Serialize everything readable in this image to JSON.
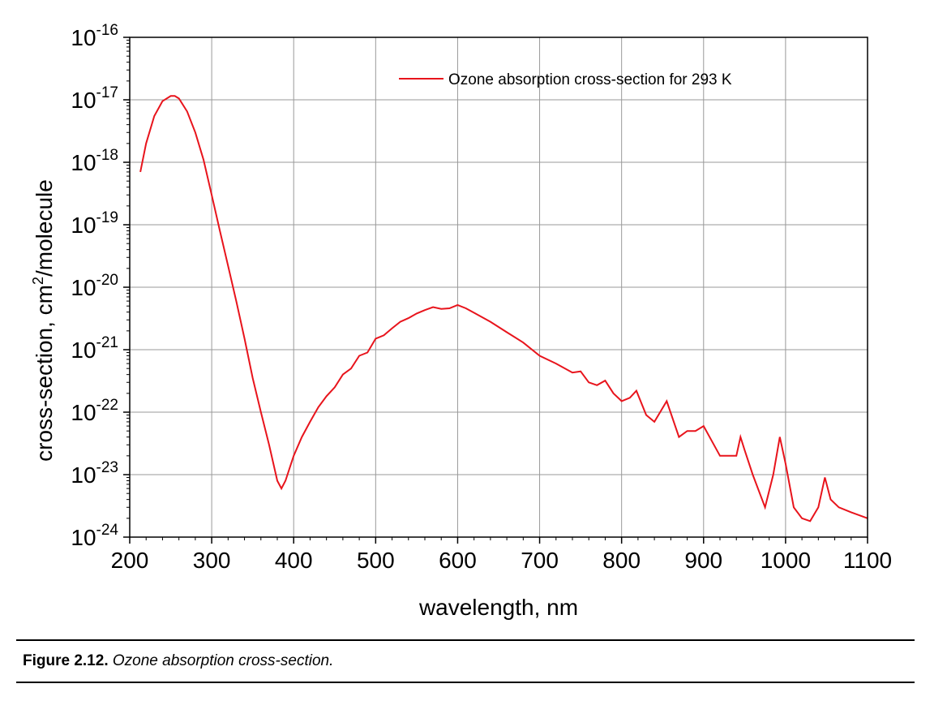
{
  "chart_data": {
    "type": "line",
    "xlabel": "wavelength, nm",
    "ylabel": "cross-section, cm²/molecule",
    "ylabel_parts": {
      "pre": "cross-section, cm",
      "sup": "2",
      "post": "/molecule"
    },
    "xlim": [
      200,
      1100
    ],
    "ylim": [
      1e-24,
      1e-16
    ],
    "yscale": "log",
    "grid": true,
    "legend_position": "top-right",
    "x_ticks": [
      "200",
      "300",
      "400",
      "500",
      "600",
      "700",
      "800",
      "900",
      "1000",
      "1100"
    ],
    "y_ticks": [
      {
        "base": "10",
        "exp": "-16"
      },
      {
        "base": "10",
        "exp": "-17"
      },
      {
        "base": "10",
        "exp": "-18"
      },
      {
        "base": "10",
        "exp": "-19"
      },
      {
        "base": "10",
        "exp": "-20"
      },
      {
        "base": "10",
        "exp": "-21"
      },
      {
        "base": "10",
        "exp": "-22"
      },
      {
        "base": "10",
        "exp": "-23"
      },
      {
        "base": "10",
        "exp": "-24"
      }
    ],
    "series": [
      {
        "name": "Ozone absorption cross-section for 293 K",
        "color": "#e8141c",
        "x": [
          213,
          220,
          230,
          240,
          250,
          255,
          260,
          270,
          280,
          290,
          300,
          310,
          320,
          330,
          340,
          350,
          360,
          370,
          380,
          385,
          390,
          400,
          410,
          420,
          430,
          440,
          450,
          460,
          470,
          480,
          490,
          500,
          510,
          520,
          530,
          540,
          550,
          560,
          570,
          580,
          590,
          600,
          610,
          620,
          640,
          660,
          680,
          700,
          720,
          740,
          750,
          760,
          770,
          780,
          790,
          800,
          810,
          818,
          830,
          840,
          855,
          870,
          880,
          890,
          900,
          920,
          940,
          945,
          950,
          960,
          975,
          985,
          993,
          1000,
          1010,
          1020,
          1030,
          1040,
          1048,
          1055,
          1065,
          1080,
          1100
        ],
        "y": [
          7e-19,
          2e-18,
          5.5e-18,
          9.5e-18,
          1.15e-17,
          1.15e-17,
          1.05e-17,
          6.5e-18,
          3e-18,
          1.1e-18,
          3e-19,
          8e-20,
          2.2e-20,
          6e-21,
          1.5e-21,
          3.5e-22,
          1e-22,
          3e-23,
          8e-24,
          6e-24,
          8e-24,
          2e-23,
          4e-23,
          7e-23,
          1.2e-22,
          1.8e-22,
          2.5e-22,
          4e-22,
          5e-22,
          8e-22,
          9e-22,
          1.5e-21,
          1.7e-21,
          2.2e-21,
          2.8e-21,
          3.2e-21,
          3.8e-21,
          4.3e-21,
          4.8e-21,
          4.5e-21,
          4.6e-21,
          5.2e-21,
          4.6e-21,
          3.9e-21,
          2.8e-21,
          1.9e-21,
          1.3e-21,
          8e-22,
          6e-22,
          4.3e-22,
          4.5e-22,
          3e-22,
          2.7e-22,
          3.2e-22,
          2e-22,
          1.5e-22,
          1.7e-22,
          2.2e-22,
          9e-23,
          7e-23,
          1.5e-22,
          4e-23,
          5e-23,
          5e-23,
          6e-23,
          2e-23,
          2e-23,
          4e-23,
          2.5e-23,
          1e-23,
          3e-24,
          1e-23,
          4e-23,
          1.5e-23,
          3e-24,
          2e-24,
          1.8e-24,
          3e-24,
          9e-24,
          4e-24,
          3e-24,
          2.5e-24,
          2e-24
        ]
      }
    ]
  },
  "caption": {
    "label": "Figure 2.12.",
    "text": "Ozone absorption cross-section."
  }
}
